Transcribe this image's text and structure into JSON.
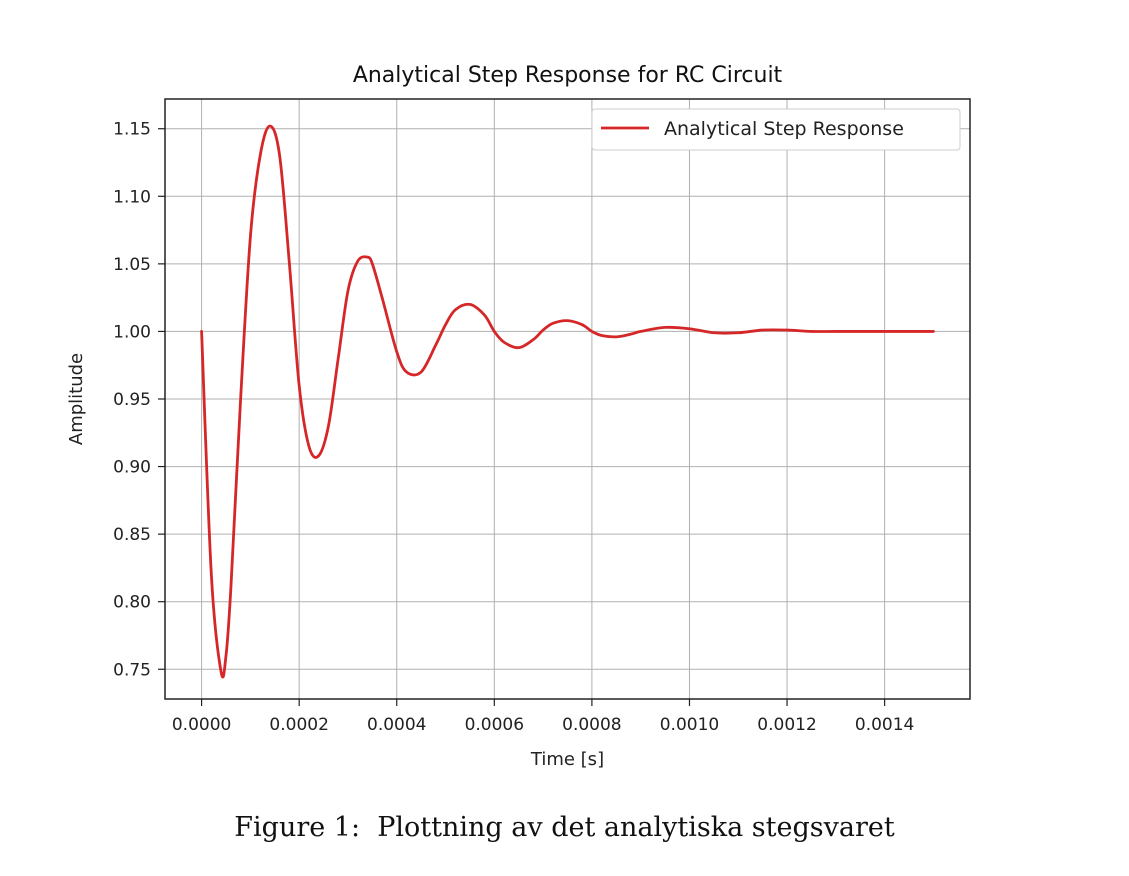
{
  "chart_data": {
    "type": "line",
    "title": "Analytical Step Response for RC Circuit",
    "xlabel": "Time [s]",
    "ylabel": "Amplitude",
    "xlim": [
      -7.5e-05,
      0.001575
    ],
    "ylim": [
      0.728,
      1.172
    ],
    "xticks": [
      0.0,
      0.0002,
      0.0004,
      0.0006,
      0.0008,
      0.001,
      0.0012,
      0.0014
    ],
    "xtick_labels": [
      "0.0000",
      "0.0002",
      "0.0004",
      "0.0006",
      "0.0008",
      "0.0010",
      "0.0012",
      "0.0014"
    ],
    "yticks": [
      0.75,
      0.8,
      0.85,
      0.9,
      0.95,
      1.0,
      1.05,
      1.1,
      1.15
    ],
    "ytick_labels": [
      "0.75",
      "0.80",
      "0.85",
      "0.90",
      "0.95",
      "1.00",
      "1.05",
      "1.10",
      "1.15"
    ],
    "grid": true,
    "legend_position": "top-right",
    "series": [
      {
        "name": "Analytical Step Response",
        "color": "#d62728",
        "x": [
          0.0,
          2e-05,
          4e-05,
          5e-05,
          6e-05,
          8e-05,
          0.0001,
          0.00012,
          0.00014,
          0.00016,
          0.00018,
          0.0002,
          0.00022,
          0.00024,
          0.00026,
          0.00028,
          0.0003,
          0.00032,
          0.00034,
          0.00035,
          0.00037,
          0.0004,
          0.00042,
          0.00045,
          0.00048,
          0.0005,
          0.00052,
          0.00055,
          0.00058,
          0.0006,
          0.00062,
          0.00065,
          0.00068,
          0.0007,
          0.00072,
          0.00075,
          0.00078,
          0.0008,
          0.00082,
          0.00085,
          0.00088,
          0.0009,
          0.00095,
          0.001,
          0.00105,
          0.0011,
          0.00115,
          0.0012,
          0.00125,
          0.0013,
          0.00135,
          0.0014,
          0.00145,
          0.0015
        ],
        "y": [
          1.0,
          0.82,
          0.748,
          0.76,
          0.81,
          0.95,
          1.07,
          1.13,
          1.152,
          1.13,
          1.05,
          0.96,
          0.915,
          0.908,
          0.93,
          0.98,
          1.03,
          1.052,
          1.055,
          1.05,
          1.025,
          0.985,
          0.97,
          0.97,
          0.99,
          1.005,
          1.016,
          1.02,
          1.012,
          1.0,
          0.992,
          0.988,
          0.994,
          1.001,
          1.006,
          1.008,
          1.005,
          1.0,
          0.997,
          0.996,
          0.998,
          1.0,
          1.003,
          1.002,
          0.999,
          0.999,
          1.001,
          1.001,
          1.0,
          1.0,
          1.0,
          1.0,
          1.0,
          1.0
        ]
      }
    ]
  },
  "caption": "Figure 1:  Plottning av det analytiska stegsvaret"
}
